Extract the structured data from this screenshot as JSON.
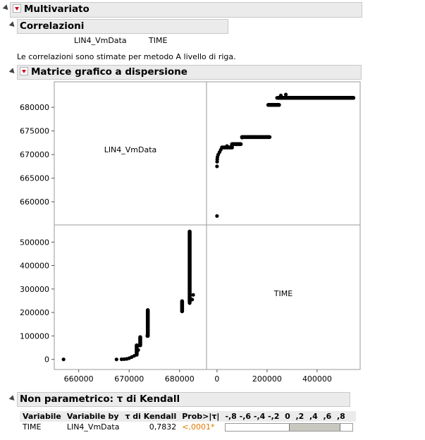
{
  "multivariato": {
    "title": "Multivariato"
  },
  "correlazioni": {
    "title": "Correlazioni",
    "columns": [
      "LIN4_VmData",
      "TIME"
    ],
    "note": "Le correlazioni sono stimate per metodo A livello di riga."
  },
  "matrice": {
    "title": "Matrice grafico a dispersione",
    "diag_labels": [
      "LIN4_VmData",
      "TIME"
    ]
  },
  "chart_data": {
    "type": "scatter",
    "title": "Matrice grafico a dispersione",
    "variables": [
      "LIN4_VmData",
      "TIME"
    ],
    "lin4_ticks": [
      "680000",
      "675000",
      "670000",
      "665000",
      "660000"
    ],
    "lin4_range": [
      656000,
      684500
    ],
    "time_ticks": [
      "500000",
      "400000",
      "300000",
      "200000",
      "100000",
      "0"
    ],
    "time_range": [
      -25000,
      555000
    ],
    "xticks_lin4": [
      "660000",
      "670000",
      "680000"
    ],
    "xticks_time": [
      "0",
      "200000",
      "400000"
    ],
    "grid": false,
    "points": [
      {
        "time": 0,
        "lin4": 657000
      },
      {
        "time": 0,
        "lin4": 667500
      },
      {
        "time": 500,
        "lin4": 668500
      },
      {
        "time": 1000,
        "lin4": 669000
      },
      {
        "time": 2000,
        "lin4": 669500
      },
      {
        "time": 5000,
        "lin4": 670000
      },
      {
        "time": 10000,
        "lin4": 670500
      },
      {
        "time": 15000,
        "lin4": 671000
      },
      {
        "time": 20000,
        "lin4": 671500
      },
      {
        "time": 40000,
        "lin4": 671800
      },
      {
        "time": 60000,
        "lin4": 672000
      },
      {
        "time": 85000,
        "lin4": 672200
      },
      {
        "time": 100000,
        "lin4": 673600
      },
      {
        "time": 150000,
        "lin4": 673700
      },
      {
        "time": 205000,
        "lin4": 680500
      },
      {
        "time": 240000,
        "lin4": 682000
      },
      {
        "time": 255000,
        "lin4": 682500
      },
      {
        "time": 275000,
        "lin4": 682700
      },
      {
        "time": 400000,
        "lin4": 682000
      },
      {
        "time": 540000,
        "lin4": 682000
      }
    ],
    "segments": [
      {
        "time": [
          100000,
          210000
        ],
        "lin4": [
          673700,
          673700
        ]
      },
      {
        "time": [
          205000,
          248000
        ],
        "lin4": [
          680500,
          680500
        ]
      },
      {
        "time": [
          245000,
          545000
        ],
        "lin4": [
          682000,
          682000
        ]
      },
      {
        "time": [
          60000,
          95000
        ],
        "lin4": [
          672200,
          672200
        ]
      },
      {
        "time": [
          20000,
          60000
        ],
        "lin4": [
          671500,
          671500
        ]
      }
    ]
  },
  "kendall": {
    "title": "Non parametrico: τ di Kendall",
    "headers": [
      "Variabile",
      "Variabile by",
      "τ di Kendall",
      "Prob>|τ|"
    ],
    "scale": "-,8 -,6 -,4 -,2  0  ,2  ,4  ,6  ,8",
    "rows": [
      {
        "variable": "TIME",
        "by": "LIN4_VmData",
        "tau": "0,7832",
        "prob": "<,0001*",
        "tau_value": 0.7832
      }
    ]
  }
}
